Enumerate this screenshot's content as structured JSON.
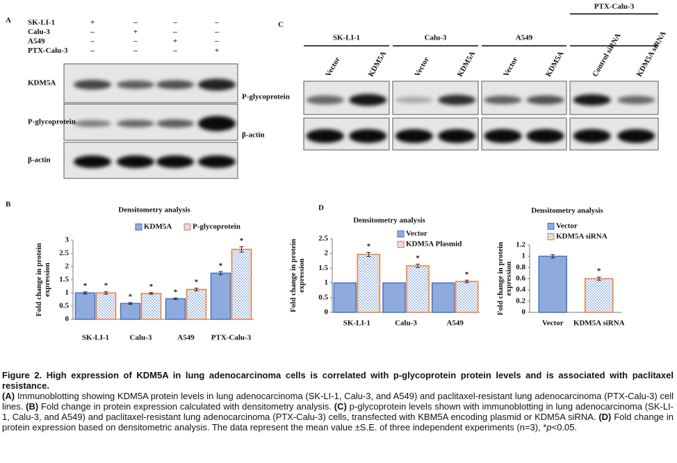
{
  "figure": {
    "panel_a": {
      "label": "A",
      "conditions": [
        {
          "name": "SK-LI-1",
          "signs": [
            "+",
            "–",
            "–",
            "–"
          ]
        },
        {
          "name": "Calu-3",
          "signs": [
            "–",
            "+",
            "–",
            "–"
          ]
        },
        {
          "name": "A549",
          "signs": [
            "–",
            "–",
            "+",
            "–"
          ]
        },
        {
          "name": "PTX-Calu-3",
          "signs": [
            "–",
            "–",
            "–",
            "+"
          ]
        }
      ],
      "blots": [
        "KDM5A",
        "P-glycoprotein",
        "β-actin"
      ]
    },
    "panel_b_label": "B",
    "panel_c": {
      "label": "C",
      "groups": [
        {
          "name": "SK-LI-1",
          "lanes": [
            "Vector",
            "KDM5A"
          ]
        },
        {
          "name": "Calu-3",
          "lanes": [
            "Vector",
            "KDM5A"
          ]
        },
        {
          "name": "A549",
          "lanes": [
            "Vector",
            "KDM5A"
          ]
        },
        {
          "name": "PTX-Calu-3",
          "lanes": [
            "Control siRNA",
            "KDM5A siRNA"
          ]
        }
      ],
      "blots": [
        "P-glycoprotein",
        "β-actin"
      ]
    },
    "panel_d_label": "D"
  },
  "chart_data": [
    {
      "type": "bar",
      "title": "Densitometry analysis",
      "y_label": [
        "Fold change in protein",
        "expression"
      ],
      "categories": [
        "SK-LI-1",
        "Calu-3",
        "A549",
        "PTX-Calu-3"
      ],
      "series": [
        {
          "name": "KDM5A",
          "color": "#4472c4",
          "values": [
            1.0,
            0.6,
            0.78,
            1.75
          ],
          "errors": [
            0.04,
            0.03,
            0.03,
            0.06
          ],
          "annotations": [
            "*",
            "*",
            "*",
            "*"
          ]
        },
        {
          "name": "P-glycoprotein",
          "color": "#ed7d31",
          "pattern": "check",
          "values": [
            1.0,
            0.98,
            1.13,
            2.65
          ],
          "errors": [
            0.05,
            0.03,
            0.05,
            0.1
          ],
          "annotations": [
            "*",
            "*",
            "*",
            "*"
          ]
        }
      ],
      "ylim": [
        0,
        3
      ],
      "yticks": [
        0,
        0.5,
        1,
        1.5,
        2,
        2.5,
        3
      ],
      "legend": "top"
    },
    {
      "type": "bar",
      "title": "Densitometry analysis",
      "y_label": [
        "Fold change in protein",
        "expression"
      ],
      "categories": [
        "SK-LI-1",
        "Calu-3",
        "A549"
      ],
      "series": [
        {
          "name": "Vector",
          "color": "#4472c4",
          "values": [
            1,
            1,
            1
          ]
        },
        {
          "name": "KDM5A Plasmid",
          "color": "#ed7d31",
          "pattern": "check",
          "values": [
            1.97,
            1.58,
            1.05
          ],
          "errors": [
            0.07,
            0.06,
            0.04
          ],
          "annotations": [
            "*",
            "*",
            "*"
          ]
        }
      ],
      "ylim": [
        0,
        2.5
      ],
      "yticks": [
        0,
        0.5,
        1,
        1.5,
        2,
        2.5
      ],
      "legend": "top-left"
    },
    {
      "type": "bar",
      "title": "Densitometry analysis",
      "y_label": [
        "Fold change in protein",
        "expression"
      ],
      "categories": [
        "Vector",
        "KDM5A siRNA"
      ],
      "series": [
        {
          "name": "Vector",
          "color": "#4472c4",
          "values": [
            1,
            null
          ],
          "errors": [
            0.03,
            null
          ]
        },
        {
          "name": "KDM5A siRNA",
          "color": "#ed7d31",
          "pattern": "check",
          "values": [
            null,
            0.6
          ],
          "errors": [
            null,
            0.03
          ],
          "annotations": [
            null,
            "*"
          ]
        }
      ],
      "ylim": [
        0,
        1.2
      ],
      "yticks": [
        0,
        0.2,
        0.4,
        0.6,
        0.8,
        1,
        1.2
      ],
      "legend": "top-left"
    }
  ],
  "caption": {
    "title": "Figure 2. High expression of KDM5A in lung adenocarcinoma cells is correlated with p-glycoprotein protein levels and is associated with paclitaxel resistance.",
    "segments": [
      {
        "text": "(A)",
        "style": "bold"
      },
      {
        "text": " Immunoblotting showing KDM5A protein levels in lung adenocarcinoma (SK-LI-1, Calu-3, and A549) and paclitaxel-resistant lung adenocarcinoma (PTX-Calu-3) cell lines. ",
        "style": "normal"
      },
      {
        "text": "(B)",
        "style": "bold"
      },
      {
        "text": " Fold change in protein expression calculated with densitometry analysis. ",
        "style": "normal"
      },
      {
        "text": "(C)",
        "style": "bold"
      },
      {
        "text": " p-glycoprotein levels shown with immunoblotting in lung adenocarcinoma (SK-LI-1, Calu-3, and A549) and paclitaxel-resistant lung adenocarcinoma (PTX-Calu-3) cells, transfected with KBM5A encoding plasmid or KDM5A siRNA. ",
        "style": "normal"
      },
      {
        "text": "(D)",
        "style": "bold"
      },
      {
        "text": " Fold change in protein expression based on densitometric analysis. The data represent the mean value ±S.E. of three independent experiments (n=3), *",
        "style": "normal"
      },
      {
        "text": "p",
        "style": "italic"
      },
      {
        "text": "<0.05.",
        "style": "normal"
      }
    ]
  }
}
